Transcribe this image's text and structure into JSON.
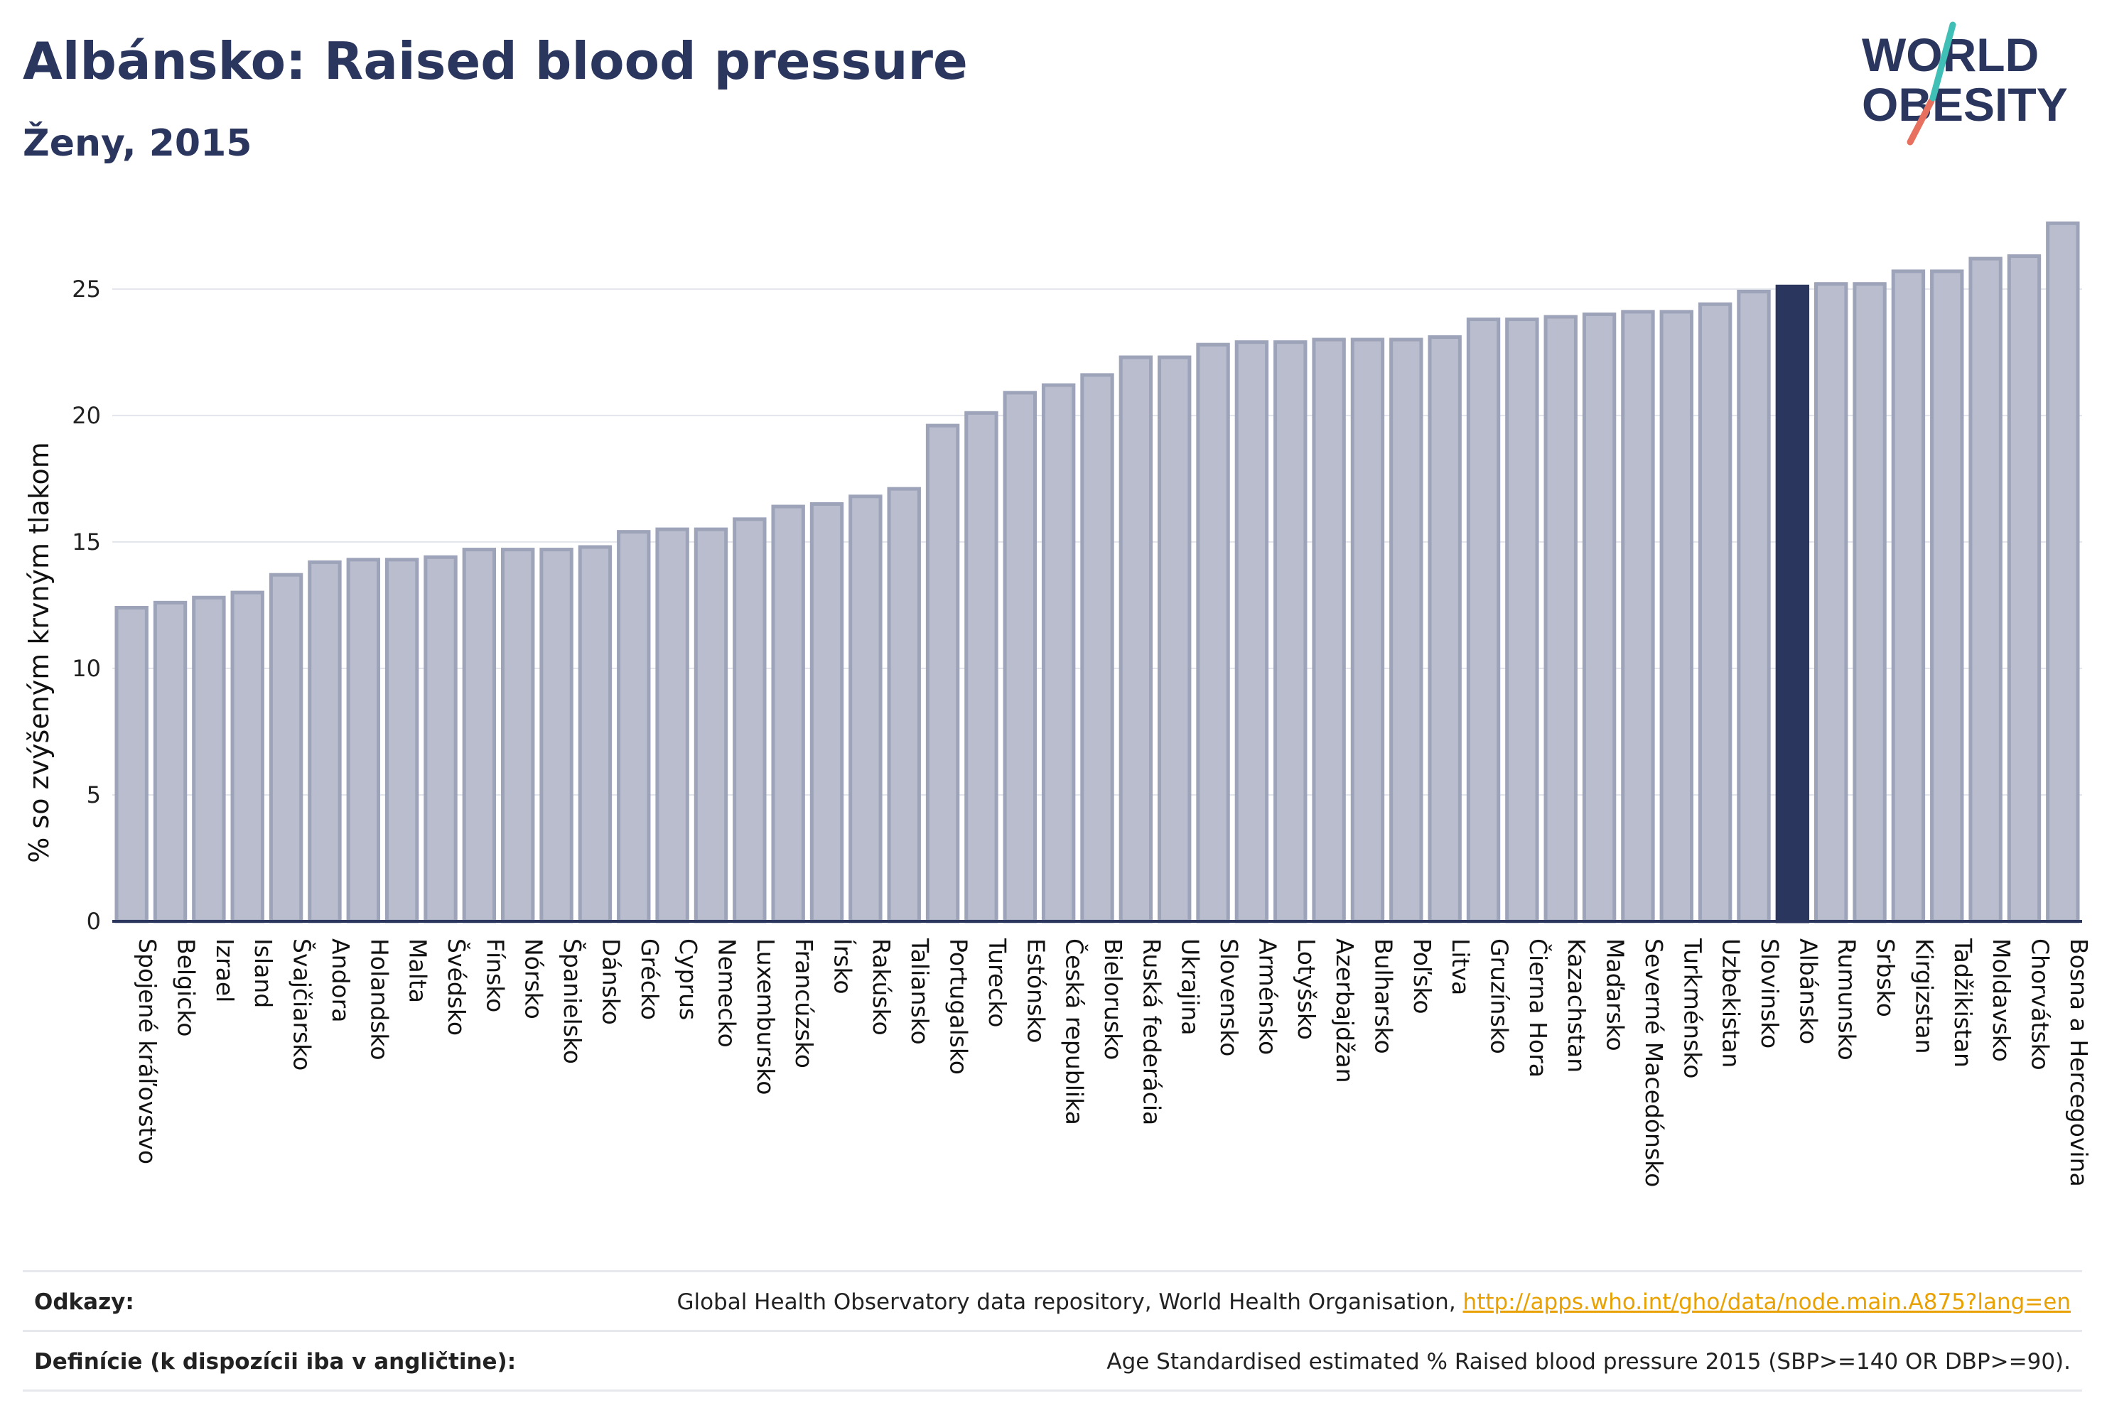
{
  "header": {
    "title": "Albánsko: Raised blood pressure",
    "subtitle": "Ženy, 2015"
  },
  "logo": {
    "line1": "WORLD",
    "line2": "OBESITY"
  },
  "colors": {
    "bar": "#b9bdcd",
    "bar_stroke": "#9da3b8",
    "highlight": "#2b365e",
    "text": "#2b365e",
    "link": "#e8a100"
  },
  "chart_data": {
    "type": "bar",
    "ylabel": "% so zvýšeným krvným tlakom",
    "ylim": [
      0,
      28
    ],
    "yticks": [
      0,
      5,
      10,
      15,
      20,
      25
    ],
    "grid": true,
    "highlight": "Albánsko",
    "categories": [
      "Spojené kráľovstvo",
      "Belgicko",
      "Izrael",
      "Island",
      "Švajčiarsko",
      "Andora",
      "Holandsko",
      "Malta",
      "Švédsko",
      "Fínsko",
      "Nórsko",
      "Španielsko",
      "Dánsko",
      "Grécko",
      "Cyprus",
      "Nemecko",
      "Luxembursko",
      "Francúzsko",
      "Írsko",
      "Rakúsko",
      "Taliansko",
      "Portugalsko",
      "Turecko",
      "Estónsko",
      "Česká republika",
      "Bielorusko",
      "Ruská federácia",
      "Ukrajina",
      "Slovensko",
      "Arménsko",
      "Lotyšsko",
      "Azerbajdžan",
      "Bulharsko",
      "Poľsko",
      "Litva",
      "Gruzínsko",
      "Čierna Hora",
      "Kazachstan",
      "Maďarsko",
      "Severné Macedónsko",
      "Turkménsko",
      "Uzbekistan",
      "Slovinsko",
      "Albánsko",
      "Rumunsko",
      "Srbsko",
      "Kirgizstan",
      "Tadžikistan",
      "Moldavsko",
      "Chorvátsko",
      "Bosna a Hercegovina"
    ],
    "values": [
      12.4,
      12.6,
      12.8,
      13.0,
      13.7,
      14.2,
      14.3,
      14.3,
      14.4,
      14.7,
      14.7,
      14.7,
      14.8,
      15.4,
      15.5,
      15.5,
      15.9,
      16.4,
      16.5,
      16.8,
      17.1,
      19.6,
      20.1,
      20.9,
      21.2,
      21.6,
      22.3,
      22.3,
      22.8,
      22.9,
      22.9,
      23.0,
      23.0,
      23.0,
      23.1,
      23.8,
      23.8,
      23.9,
      24.0,
      24.1,
      24.1,
      24.4,
      24.9,
      25.1,
      25.2,
      25.2,
      25.7,
      25.7,
      26.2,
      26.3,
      27.6
    ]
  },
  "footer": {
    "sources_label": "Odkazy:",
    "sources_text": "Global Health Observatory data repository, World Health Organisation, ",
    "sources_link": "http://apps.who.int/gho/data/node.main.A875?lang=en",
    "definitions_label": "Definície (k dispozícii iba v angličtine):",
    "definitions_text": "Age Standardised estimated % Raised blood pressure 2015 (SBP>=140 OR DBP>=90)."
  }
}
